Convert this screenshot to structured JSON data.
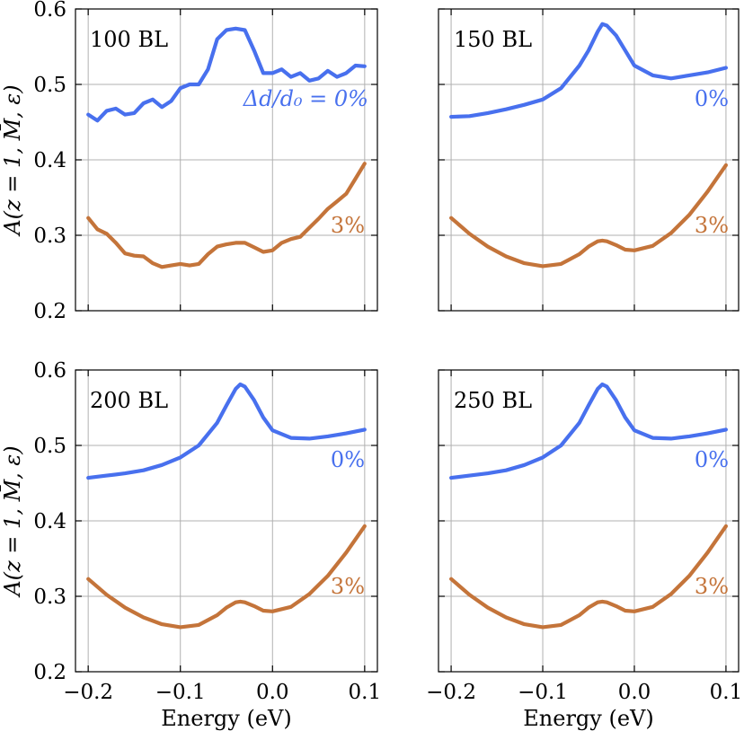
{
  "chart_data": [
    {
      "type": "line",
      "panel_label": "100 BL",
      "xlabel": "",
      "ylabel": "A(z = 1, M̄, ε)",
      "xlim": [
        -0.2,
        0.1
      ],
      "ylim": [
        0.2,
        0.6
      ],
      "xticks": [
        -0.2,
        -0.1,
        0.0,
        0.1
      ],
      "xtick_labels": [
        "",
        "",
        "",
        ""
      ],
      "yticks": [
        0.2,
        0.3,
        0.4,
        0.5,
        0.6
      ],
      "ytick_labels": [
        "0.2",
        "0.3",
        "0.4",
        "0.5",
        "0.6"
      ],
      "grid": true,
      "series": [
        {
          "name": "Δd/d0 = 0%",
          "label_text": "Δd/d₀ = 0%",
          "color": "#4870ee",
          "x": [
            -0.2,
            -0.19,
            -0.18,
            -0.17,
            -0.16,
            -0.15,
            -0.14,
            -0.13,
            -0.12,
            -0.11,
            -0.1,
            -0.09,
            -0.08,
            -0.07,
            -0.06,
            -0.05,
            -0.04,
            -0.03,
            -0.02,
            -0.01,
            0.0,
            0.01,
            0.02,
            0.03,
            0.04,
            0.05,
            0.06,
            0.07,
            0.08,
            0.09,
            0.1
          ],
          "values": [
            0.46,
            0.452,
            0.465,
            0.468,
            0.46,
            0.462,
            0.475,
            0.48,
            0.47,
            0.478,
            0.495,
            0.5,
            0.5,
            0.52,
            0.56,
            0.572,
            0.574,
            0.572,
            0.545,
            0.515,
            0.515,
            0.52,
            0.51,
            0.515,
            0.505,
            0.508,
            0.518,
            0.51,
            0.515,
            0.525,
            0.524
          ]
        },
        {
          "name": "3%",
          "label_text": "3%",
          "color": "#c4743a",
          "x": [
            -0.2,
            -0.19,
            -0.18,
            -0.17,
            -0.16,
            -0.15,
            -0.14,
            -0.13,
            -0.12,
            -0.11,
            -0.1,
            -0.09,
            -0.08,
            -0.07,
            -0.06,
            -0.05,
            -0.04,
            -0.03,
            -0.02,
            -0.01,
            0.0,
            0.01,
            0.02,
            0.03,
            0.04,
            0.05,
            0.06,
            0.07,
            0.08,
            0.09,
            0.1
          ],
          "values": [
            0.323,
            0.308,
            0.302,
            0.29,
            0.276,
            0.273,
            0.272,
            0.263,
            0.258,
            0.26,
            0.262,
            0.26,
            0.262,
            0.275,
            0.285,
            0.288,
            0.29,
            0.29,
            0.284,
            0.278,
            0.28,
            0.29,
            0.295,
            0.298,
            0.31,
            0.322,
            0.335,
            0.345,
            0.355,
            0.375,
            0.395
          ]
        }
      ]
    },
    {
      "type": "line",
      "panel_label": "150 BL",
      "xlabel": "",
      "ylabel": "",
      "xlim": [
        -0.2,
        0.1
      ],
      "ylim": [
        0.2,
        0.6
      ],
      "xticks": [
        -0.2,
        -0.1,
        0.0,
        0.1
      ],
      "xtick_labels": [
        "",
        "",
        "",
        ""
      ],
      "yticks": [
        0.2,
        0.3,
        0.4,
        0.5,
        0.6
      ],
      "ytick_labels": [
        "",
        "",
        "",
        "",
        ""
      ],
      "grid": true,
      "series": [
        {
          "name": "0%",
          "label_text": "0%",
          "color": "#4870ee",
          "x": [
            -0.2,
            -0.18,
            -0.16,
            -0.14,
            -0.12,
            -0.1,
            -0.08,
            -0.06,
            -0.05,
            -0.04,
            -0.035,
            -0.03,
            -0.02,
            -0.01,
            0.0,
            0.02,
            0.04,
            0.06,
            0.08,
            0.1
          ],
          "values": [
            0.457,
            0.458,
            0.462,
            0.467,
            0.473,
            0.48,
            0.495,
            0.525,
            0.545,
            0.57,
            0.58,
            0.578,
            0.565,
            0.545,
            0.525,
            0.512,
            0.508,
            0.512,
            0.516,
            0.522
          ]
        },
        {
          "name": "3%",
          "label_text": "3%",
          "color": "#c4743a",
          "x": [
            -0.2,
            -0.18,
            -0.16,
            -0.14,
            -0.12,
            -0.1,
            -0.08,
            -0.06,
            -0.05,
            -0.04,
            -0.035,
            -0.03,
            -0.02,
            -0.01,
            0.0,
            0.02,
            0.04,
            0.06,
            0.08,
            0.1
          ],
          "values": [
            0.323,
            0.302,
            0.285,
            0.272,
            0.263,
            0.259,
            0.262,
            0.275,
            0.285,
            0.292,
            0.293,
            0.292,
            0.287,
            0.281,
            0.28,
            0.286,
            0.303,
            0.327,
            0.358,
            0.393
          ]
        }
      ]
    },
    {
      "type": "line",
      "panel_label": "200 BL",
      "xlabel": "Energy (eV)",
      "ylabel": "A(z = 1, M̄, ε)",
      "xlim": [
        -0.2,
        0.1
      ],
      "ylim": [
        0.2,
        0.6
      ],
      "xticks": [
        -0.2,
        -0.1,
        0.0,
        0.1
      ],
      "xtick_labels": [
        "−0.2",
        "−0.1",
        "0.0",
        "0.1"
      ],
      "yticks": [
        0.2,
        0.3,
        0.4,
        0.5,
        0.6
      ],
      "ytick_labels": [
        "0.2",
        "0.3",
        "0.4",
        "0.5",
        "0.6"
      ],
      "grid": true,
      "series": [
        {
          "name": "0%",
          "label_text": "0%",
          "color": "#4870ee",
          "x": [
            -0.2,
            -0.18,
            -0.16,
            -0.14,
            -0.12,
            -0.1,
            -0.08,
            -0.06,
            -0.05,
            -0.04,
            -0.035,
            -0.03,
            -0.02,
            -0.01,
            0.0,
            0.02,
            0.04,
            0.06,
            0.08,
            0.1
          ],
          "values": [
            0.457,
            0.46,
            0.463,
            0.467,
            0.474,
            0.484,
            0.5,
            0.53,
            0.553,
            0.575,
            0.581,
            0.578,
            0.56,
            0.537,
            0.52,
            0.51,
            0.509,
            0.512,
            0.516,
            0.521
          ]
        },
        {
          "name": "3%",
          "label_text": "3%",
          "color": "#c4743a",
          "x": [
            -0.2,
            -0.18,
            -0.16,
            -0.14,
            -0.12,
            -0.1,
            -0.08,
            -0.06,
            -0.05,
            -0.04,
            -0.035,
            -0.03,
            -0.02,
            -0.01,
            0.0,
            0.02,
            0.04,
            0.06,
            0.08,
            0.1
          ],
          "values": [
            0.323,
            0.302,
            0.285,
            0.272,
            0.263,
            0.259,
            0.262,
            0.275,
            0.285,
            0.292,
            0.293,
            0.292,
            0.287,
            0.281,
            0.28,
            0.286,
            0.303,
            0.327,
            0.358,
            0.393
          ]
        }
      ]
    },
    {
      "type": "line",
      "panel_label": "250 BL",
      "xlabel": "Energy (eV)",
      "ylabel": "",
      "xlim": [
        -0.2,
        0.1
      ],
      "ylim": [
        0.2,
        0.6
      ],
      "xticks": [
        -0.2,
        -0.1,
        0.0,
        0.1
      ],
      "xtick_labels": [
        "−0.2",
        "−0.1",
        "0.0",
        "0.1"
      ],
      "yticks": [
        0.2,
        0.3,
        0.4,
        0.5,
        0.6
      ],
      "ytick_labels": [
        "",
        "",
        "",
        "",
        ""
      ],
      "grid": true,
      "series": [
        {
          "name": "0%",
          "label_text": "0%",
          "color": "#4870ee",
          "x": [
            -0.2,
            -0.18,
            -0.16,
            -0.14,
            -0.12,
            -0.1,
            -0.08,
            -0.06,
            -0.05,
            -0.04,
            -0.035,
            -0.03,
            -0.02,
            -0.01,
            0.0,
            0.02,
            0.04,
            0.06,
            0.08,
            0.1
          ],
          "values": [
            0.457,
            0.46,
            0.463,
            0.467,
            0.474,
            0.484,
            0.5,
            0.53,
            0.553,
            0.575,
            0.581,
            0.578,
            0.56,
            0.537,
            0.52,
            0.51,
            0.509,
            0.512,
            0.516,
            0.521
          ]
        },
        {
          "name": "3%",
          "label_text": "3%",
          "color": "#c4743a",
          "x": [
            -0.2,
            -0.18,
            -0.16,
            -0.14,
            -0.12,
            -0.1,
            -0.08,
            -0.06,
            -0.05,
            -0.04,
            -0.035,
            -0.03,
            -0.02,
            -0.01,
            0.0,
            0.02,
            0.04,
            0.06,
            0.08,
            0.1
          ],
          "values": [
            0.323,
            0.302,
            0.285,
            0.272,
            0.263,
            0.259,
            0.262,
            0.275,
            0.285,
            0.292,
            0.293,
            0.292,
            0.287,
            0.281,
            0.28,
            0.286,
            0.303,
            0.327,
            0.358,
            0.393
          ]
        }
      ]
    }
  ]
}
